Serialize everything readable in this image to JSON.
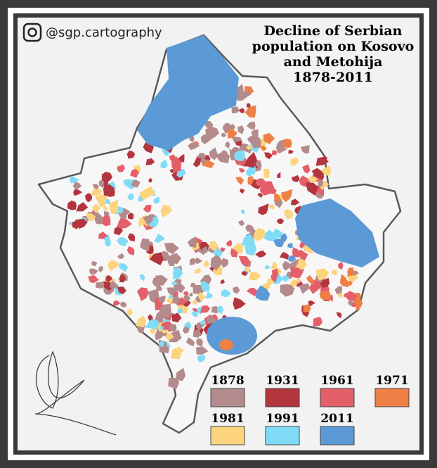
{
  "header": {
    "handle": "@sgp.cartography",
    "title": [
      "Decline of Serbian",
      "population on Kosovo",
      "and Metohija",
      "1878-2011"
    ]
  },
  "legend": [
    {
      "label": "1878",
      "color": "#b38b8c"
    },
    {
      "label": "1931",
      "color": "#b3353e"
    },
    {
      "label": "1961",
      "color": "#e35f69"
    },
    {
      "label": "1971",
      "color": "#ee8045"
    },
    {
      "label": "1981",
      "color": "#fdd47e"
    },
    {
      "label": "1991",
      "color": "#80dcf6"
    },
    {
      "label": "2011",
      "color": "#5b9ad6"
    }
  ]
}
